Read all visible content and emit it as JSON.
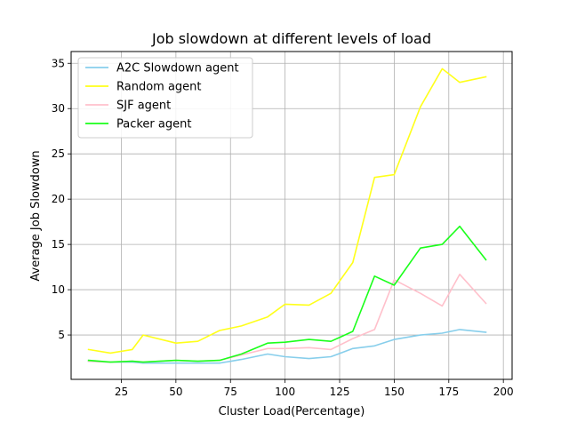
{
  "chart_data": {
    "type": "line",
    "title": "Job slowdown at different levels of load",
    "xlabel": "Cluster Load(Percentage)",
    "ylabel": "Average Job Slowdown",
    "xlim": [
      2,
      204
    ],
    "ylim": [
      0.1,
      36.3
    ],
    "xticks": [
      25,
      50,
      75,
      100,
      125,
      150,
      175,
      200
    ],
    "yticks": [
      5,
      10,
      15,
      20,
      25,
      30,
      35
    ],
    "grid": true,
    "legend_position": "top-left",
    "series": [
      {
        "name": "A2C Slowdown agent",
        "color": "#87ceeb",
        "x": [
          10,
          20,
          30,
          35,
          50,
          60,
          70,
          80,
          92,
          100,
          111,
          121,
          131,
          141,
          150,
          162,
          172,
          180,
          192
        ],
        "y": [
          2.1,
          2.0,
          2.0,
          1.9,
          1.9,
          1.9,
          1.9,
          2.3,
          2.9,
          2.6,
          2.4,
          2.6,
          3.5,
          3.8,
          4.5,
          5.0,
          5.2,
          5.6,
          5.3
        ]
      },
      {
        "name": "Random agent",
        "color": "#ffff1a",
        "x": [
          10,
          20,
          30,
          35,
          50,
          60,
          70,
          80,
          92,
          100,
          111,
          121,
          131,
          141,
          150,
          162,
          172,
          180,
          192
        ],
        "y": [
          3.4,
          3.0,
          3.4,
          5.0,
          4.1,
          4.3,
          5.5,
          6.0,
          7.0,
          8.4,
          8.3,
          9.6,
          13.0,
          22.4,
          22.7,
          30.2,
          34.4,
          32.9,
          33.5
        ]
      },
      {
        "name": "SJF agent",
        "color": "#ffc0cb",
        "x": [
          10,
          20,
          30,
          35,
          50,
          60,
          70,
          80,
          92,
          100,
          111,
          121,
          131,
          141,
          150,
          162,
          172,
          180,
          192
        ],
        "y": [
          2.1,
          2.0,
          2.1,
          2.0,
          2.2,
          2.1,
          2.2,
          2.8,
          3.5,
          3.5,
          3.6,
          3.4,
          4.6,
          5.6,
          11.1,
          9.6,
          8.2,
          11.7,
          8.5
        ]
      },
      {
        "name": "Packer agent",
        "color": "#1aff1a",
        "x": [
          10,
          20,
          30,
          35,
          50,
          60,
          70,
          80,
          92,
          100,
          111,
          121,
          131,
          141,
          150,
          162,
          172,
          180,
          192
        ],
        "y": [
          2.2,
          2.0,
          2.1,
          2.0,
          2.2,
          2.1,
          2.2,
          2.9,
          4.1,
          4.2,
          4.5,
          4.3,
          5.4,
          11.5,
          10.5,
          14.6,
          15.0,
          17.0,
          13.3
        ]
      }
    ]
  }
}
